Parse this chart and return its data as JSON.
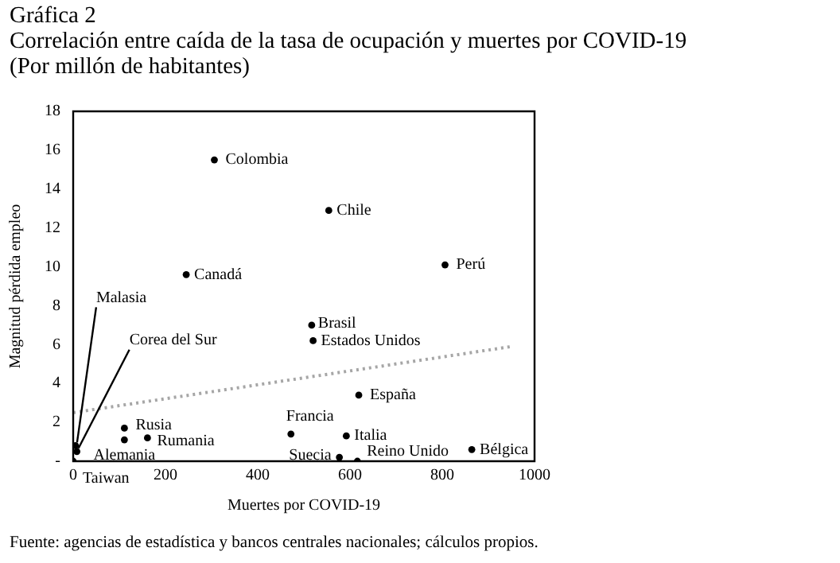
{
  "chart_data": {
    "type": "scatter",
    "title": "Gráfica 2",
    "subtitle": "Correlación entre caída de la tasa de ocupación y muertes por COVID-19\n(Por millón de habitantes)",
    "xlabel": "Muertes por COVID-19",
    "ylabel": "Magnitud pérdida empleo",
    "xlim": [
      0,
      1000
    ],
    "xticks": [
      0,
      200,
      400,
      600,
      800,
      1000
    ],
    "ylim": [
      0,
      18
    ],
    "yticks": [
      {
        "value": 0,
        "label": "-"
      },
      2,
      4,
      6,
      8,
      10,
      12,
      14,
      16,
      18
    ],
    "grid": false,
    "legend": false,
    "marker": "circle",
    "series": [
      {
        "color": "#000000",
        "x": [
          306,
          554,
          806,
          245,
          517,
          520,
          619,
          472,
          592,
          577,
          616,
          864,
          111,
          161,
          111,
          0,
          5,
          8
        ],
        "values": [
          15.5,
          12.9,
          10.1,
          9.6,
          7.0,
          6.2,
          3.4,
          1.4,
          1.3,
          0.2,
          0,
          0.6,
          1.7,
          1.2,
          1.1,
          0,
          0.8,
          0.5
        ]
      },
      {
        "type": "line",
        "color": "#a6a6a6",
        "x": [
          0,
          950
        ],
        "values": [
          2.5,
          5.9
        ],
        "line_style": "dotted",
        "marker": "none"
      }
    ],
    "annotations": [
      {
        "text": "Colombia",
        "x": 306,
        "y": 15.5
      },
      {
        "text": "Chile",
        "x": 554,
        "y": 12.9
      },
      {
        "text": "Perú",
        "x": 806,
        "y": 10.1
      },
      {
        "text": "Canadá",
        "x": 245,
        "y": 9.6
      },
      {
        "text": "Brasil",
        "x": 517,
        "y": 7.0
      },
      {
        "text": "Estados Unidos",
        "x": 520,
        "y": 6.2
      },
      {
        "text": "España",
        "x": 619,
        "y": 3.4
      },
      {
        "text": "Francia",
        "x": 472,
        "y": 1.4
      },
      {
        "text": "Italia",
        "x": 592,
        "y": 1.3
      },
      {
        "text": "Suecia",
        "x": 577,
        "y": 0.2
      },
      {
        "text": "Reino Unido",
        "x": 616,
        "y": 0
      },
      {
        "text": "Bélgica",
        "x": 864,
        "y": 0.6
      },
      {
        "text": "Rusia",
        "x": 111,
        "y": 1.7
      },
      {
        "text": "Rumania",
        "x": 161,
        "y": 1.2
      },
      {
        "text": "Alemania",
        "x": 111,
        "y": 1.1
      },
      {
        "text": "Taiwan",
        "x": 0,
        "y": 0
      },
      {
        "text": "Malasia",
        "x": 5,
        "y": 0.8
      },
      {
        "text": "Corea del Sur",
        "x": 8,
        "y": 0.5
      },
      "Fuente: agencias de estadística y bancos centrales nacionales; cálculos propios."
    ]
  }
}
